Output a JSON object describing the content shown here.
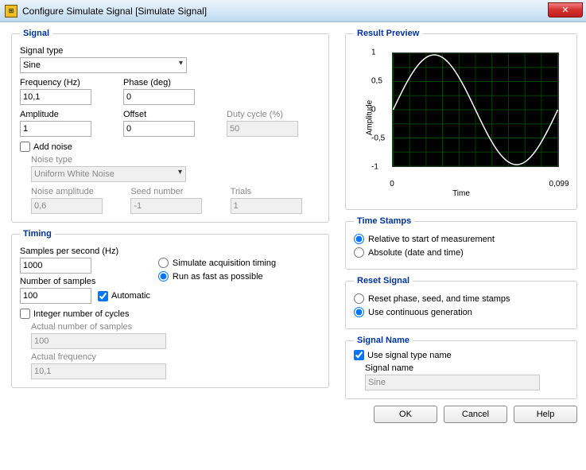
{
  "window": {
    "title": "Configure Simulate Signal [Simulate Signal]"
  },
  "signal": {
    "legend": "Signal",
    "signal_type_label": "Signal type",
    "signal_type_value": "Sine",
    "freq_label": "Frequency (Hz)",
    "freq_value": "10,1",
    "phase_label": "Phase (deg)",
    "phase_value": "0",
    "amp_label": "Amplitude",
    "amp_value": "1",
    "offset_label": "Offset",
    "offset_value": "0",
    "duty_label": "Duty cycle (%)",
    "duty_value": "50",
    "addnoise_label": "Add noise",
    "noise_type_label": "Noise type",
    "noise_type_value": "Uniform White Noise",
    "noise_amp_label": "Noise amplitude",
    "noise_amp_value": "0,6",
    "seed_label": "Seed number",
    "seed_value": "-1",
    "trials_label": "Trials",
    "trials_value": "1"
  },
  "timing": {
    "legend": "Timing",
    "sps_label": "Samples per second (Hz)",
    "sps_value": "1000",
    "nos_label": "Number of samples",
    "nos_value": "100",
    "auto_label": "Automatic",
    "sim_label": "Simulate acquisition timing",
    "fast_label": "Run as fast as possible",
    "int_label": "Integer number of cycles",
    "actual_nos_label": "Actual number of samples",
    "actual_nos_value": "100",
    "actual_freq_label": "Actual frequency",
    "actual_freq_value": "10,1"
  },
  "preview": {
    "legend": "Result Preview",
    "ylabel": "Amplitude",
    "xlabel": "Time",
    "yticks": [
      "1",
      "0,5",
      "0",
      "-0,5",
      "-1"
    ],
    "xticks": [
      "0",
      "0,099"
    ],
    "range_y": [
      -1,
      1
    ],
    "range_x": [
      0,
      0.099
    ],
    "grid_color": "#004400",
    "series_color": "#ffffff",
    "background": "#000000"
  },
  "timestamps": {
    "legend": "Time Stamps",
    "rel_label": "Relative to start of measurement",
    "abs_label": "Absolute (date and time)"
  },
  "reset": {
    "legend": "Reset Signal",
    "reset_label": "Reset phase, seed, and time stamps",
    "cont_label": "Use continuous generation"
  },
  "signalName": {
    "legend": "Signal Name",
    "use_type_label": "Use signal type name",
    "name_label": "Signal name",
    "name_value": "Sine"
  },
  "buttons": {
    "ok": "OK",
    "cancel": "Cancel",
    "help": "Help"
  }
}
